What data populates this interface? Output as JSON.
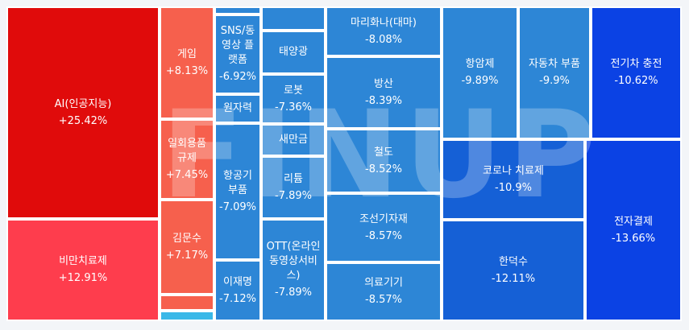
{
  "chart_data": {
    "type": "treemap",
    "value_format": "percent",
    "colors": {
      "pos_strong": "#e00b0b",
      "pos_mid": "#fe3d4d",
      "pos_light": "#f6604d",
      "neg_light": "#2d86d6",
      "neg_mid": "#1560d6",
      "neg_strong": "#0b42e4",
      "cyan": "#39b8e8",
      "border": "#ffffff"
    },
    "items": [
      {
        "label": "AI(인공지능)",
        "value": "+25.42%",
        "color": "#e00b0b"
      },
      {
        "label": "비만치료제",
        "value": "+12.91%",
        "color": "#fe3d4d"
      },
      {
        "label": "게임",
        "value": "+8.13%",
        "color": "#f6604d"
      },
      {
        "label": "일회용품 규제",
        "value": "+7.45%",
        "color": "#f6604d"
      },
      {
        "label": "김문수",
        "value": "+7.17%",
        "color": "#f6604d"
      },
      {
        "label": "",
        "value": "",
        "color": "#f6604d"
      },
      {
        "label": "",
        "value": "",
        "color": "#39b8e8"
      },
      {
        "label": "",
        "value": "",
        "color": "#2d86d6"
      },
      {
        "label": "SNS/동영상 플랫폼",
        "value": "-6.92%",
        "color": "#2d86d6"
      },
      {
        "label": "원자력",
        "value": "",
        "color": "#2d86d6"
      },
      {
        "label": "항공기 부품",
        "value": "-7.09%",
        "color": "#2d86d6"
      },
      {
        "label": "이재명",
        "value": "-7.12%",
        "color": "#2d86d6"
      },
      {
        "label": "",
        "value": "",
        "color": "#2d86d6"
      },
      {
        "label": "태양광",
        "value": "",
        "color": "#2d86d6"
      },
      {
        "label": "로봇",
        "value": "-7.36%",
        "color": "#2d86d6"
      },
      {
        "label": "새만금",
        "value": "",
        "color": "#2d86d6"
      },
      {
        "label": "리튬",
        "value": "-7.89%",
        "color": "#2d86d6"
      },
      {
        "label": "OTT(온라인동영상서비스)",
        "value": "-7.89%",
        "color": "#2d86d6"
      },
      {
        "label": "마리화나(대마)",
        "value": "-8.08%",
        "color": "#2d86d6"
      },
      {
        "label": "방산",
        "value": "-8.39%",
        "color": "#2d86d6"
      },
      {
        "label": "철도",
        "value": "-8.52%",
        "color": "#2d86d6"
      },
      {
        "label": "조선기자재",
        "value": "-8.57%",
        "color": "#2d86d6"
      },
      {
        "label": "의료기기",
        "value": "-8.57%",
        "color": "#2d86d6"
      },
      {
        "label": "항암제",
        "value": "-9.89%",
        "color": "#2d86d6"
      },
      {
        "label": "자동차 부품",
        "value": "-9.9%",
        "color": "#2d86d6"
      },
      {
        "label": "전기차 충전",
        "value": "-10.62%",
        "color": "#0b42e4"
      },
      {
        "label": "코로나 치료제",
        "value": "-10.9%",
        "color": "#1560d6"
      },
      {
        "label": "한덕수",
        "value": "-12.11%",
        "color": "#1560d6"
      },
      {
        "label": "전자결제",
        "value": "-13.66%",
        "color": "#0b42e4"
      }
    ]
  },
  "watermark": "FINUP"
}
